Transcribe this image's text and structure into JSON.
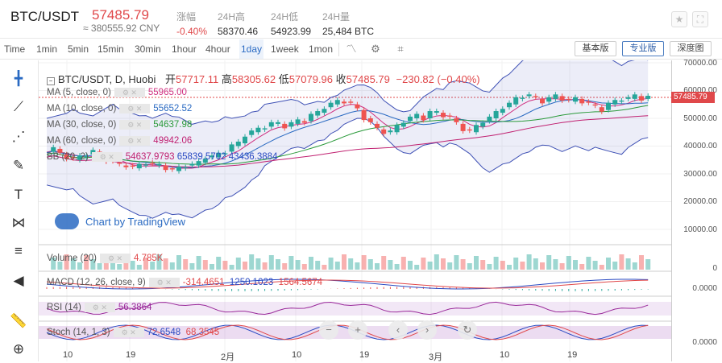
{
  "header": {
    "pair": "BTC/USDT",
    "price": "57485.79",
    "cny": "≈ 380555.92 CNY",
    "stats": [
      {
        "label": "涨幅",
        "value": "-0.40%",
        "red": true
      },
      {
        "label": "24H高",
        "value": "58370.46"
      },
      {
        "label": "24H低",
        "value": "54923.99"
      },
      {
        "label": "24H量",
        "value": "25,484 BTC"
      }
    ]
  },
  "toolbar": {
    "timeframes": [
      "Time",
      "1min",
      "5min",
      "15min",
      "30min",
      "1hour",
      "4hour",
      "1day",
      "1week",
      "1mon"
    ],
    "active": "1day",
    "views": {
      "basic": "基本版",
      "pro": "专业版",
      "depth": "深度图"
    }
  },
  "tools": [
    "crosshair-icon",
    "trend-line-icon",
    "fib-icon",
    "brush-icon",
    "text-icon",
    "pattern-icon",
    "measure-icon",
    "back-icon",
    "ruler-icon",
    "zoom-icon"
  ],
  "main": {
    "symbol": "BTC/USDT, D, Huobi",
    "open_label": "开",
    "open": "57717.11",
    "high_label": "高",
    "high": "58305.62",
    "low_label": "低",
    "low": "57079.96",
    "close_label": "收",
    "close": "57485.79",
    "change": "−230.82 (−0.40%)"
  },
  "studies": [
    {
      "label": "MA (5, close, 0)",
      "value": "55965.00",
      "color": "#d03080"
    },
    {
      "label": "MA (10, close, 0)",
      "value": "55652.52",
      "color": "#2a6ac2"
    },
    {
      "label": "MA (30, close, 0)",
      "value": "54637.98",
      "color": "#2a9a3a"
    },
    {
      "label": "MA (60, close, 0)",
      "value": "49942.06",
      "color": "#c02070"
    },
    {
      "label": "BB (20, 2)",
      "v1": "54637.9793",
      "v2": "65839.5702",
      "v3": "43436.3884"
    }
  ],
  "volume": {
    "label": "Volume (20)",
    "value": "4.785K"
  },
  "macd": {
    "label": "MACD (12, 26, close, 9)",
    "v1": "-314.4651",
    "v2": "1250.1023",
    "v3": "1564.5674"
  },
  "rsi": {
    "label": "RSI (14)",
    "value": "56.3864"
  },
  "stoch": {
    "label": "Stoch (14, 1, 3)",
    "v1": "72.6548",
    "v2": "68.3545"
  },
  "price_axis": [
    "70000.00",
    "60000.00",
    "50000.00",
    "40000.00",
    "30000.00",
    "20000.00",
    "10000.00"
  ],
  "price_tag": "57485.79",
  "sub_axis": {
    "vol": "0",
    "macd": "0.0000",
    "stoch": "0.0000"
  },
  "x_labels": [
    "10",
    "19",
    "2月",
    "10",
    "19",
    "3月",
    "10",
    "19"
  ],
  "watermark": "Chart by TradingView",
  "colors": {
    "up": "#26a69a",
    "down": "#ef5350",
    "bb": "#3f51b5",
    "accent": "#2a6ac2"
  }
}
